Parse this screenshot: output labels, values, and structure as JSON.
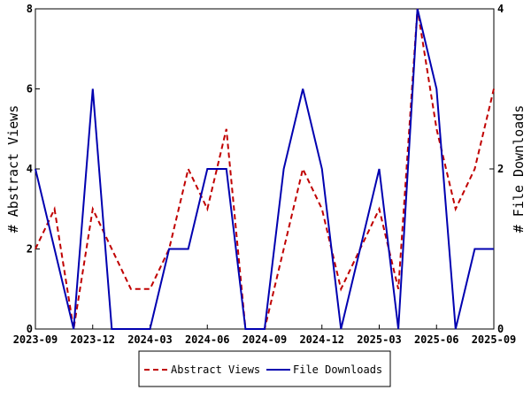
{
  "chart_data": {
    "type": "line",
    "x": [
      "2023-09",
      "2023-10",
      "2023-11",
      "2023-12",
      "2024-01",
      "2024-02",
      "2024-03",
      "2024-04",
      "2024-05",
      "2024-06",
      "2024-07",
      "2024-08",
      "2024-09",
      "2024-10",
      "2024-11",
      "2024-12",
      "2025-01",
      "2025-02",
      "2025-03",
      "2025-04",
      "2025-05",
      "2025-06",
      "2025-07",
      "2025-08",
      "2025-09"
    ],
    "x_ticks": [
      "2023-09",
      "2023-12",
      "2024-03",
      "2024-06",
      "2024-09",
      "2024-12",
      "2025-03",
      "2025-06",
      "2025-09"
    ],
    "series": [
      {
        "name": "Abstract Views",
        "axis": "left",
        "color": "#c00000",
        "dash": "dashed",
        "values": [
          2,
          3,
          0,
          3,
          2,
          1,
          1,
          2,
          4,
          3,
          5,
          0,
          0,
          2,
          4,
          3,
          1,
          2,
          3,
          1,
          8,
          5,
          3,
          4,
          6
        ]
      },
      {
        "name": "File Downloads",
        "axis": "right",
        "color": "#0000b0",
        "dash": "solid",
        "values": [
          2,
          1,
          0,
          3,
          0,
          0,
          0,
          1,
          1,
          2,
          2,
          0,
          0,
          2,
          3,
          2,
          0,
          1,
          2,
          0,
          4,
          3,
          0,
          1,
          1
        ]
      }
    ],
    "ylabel": "# Abstract Views",
    "y2label": "# File Downloads",
    "ylim": [
      0,
      8
    ],
    "yticks": [
      0,
      2,
      4,
      6,
      8
    ],
    "y2lim": [
      0,
      4
    ],
    "y2ticks": [
      0,
      2,
      4
    ],
    "grid": false,
    "legend_position": "bottom"
  }
}
